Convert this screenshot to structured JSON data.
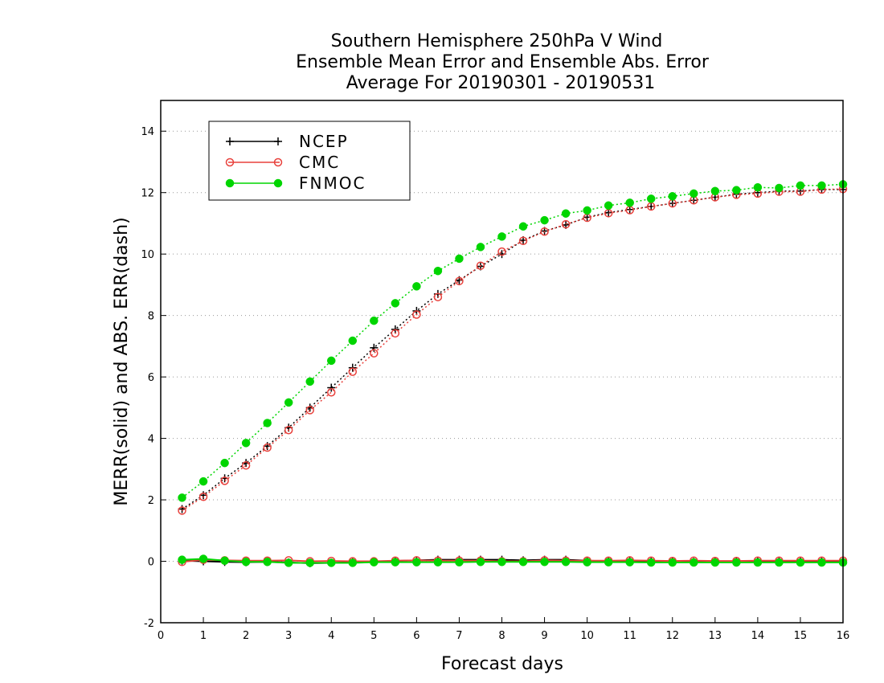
{
  "chart_data": {
    "type": "line",
    "title_lines": [
      "Southern Hemisphere 250hPa V Wind",
      "Ensemble Mean Error and Ensemble Abs. Error",
      "Average For 20190301 - 20190531"
    ],
    "xlabel": "Forecast days",
    "ylabel": "MERR(solid) and ABS. ERR(dash)",
    "xlim": [
      0,
      16
    ],
    "ylim": [
      -2,
      15
    ],
    "xticks": [
      "0",
      "1",
      "2",
      "3",
      "4",
      "5",
      "6",
      "7",
      "8",
      "9",
      "10",
      "11",
      "12",
      "13",
      "14",
      "15",
      "16"
    ],
    "yticks": [
      "-2",
      "0",
      "2",
      "4",
      "6",
      "8",
      "10",
      "12",
      "14"
    ],
    "grid": "horizontal dotted",
    "legend_position": "top-left",
    "x": [
      0.5,
      1,
      1.5,
      2,
      2.5,
      3,
      3.5,
      4,
      4.5,
      5,
      5.5,
      6,
      6.5,
      7,
      7.5,
      8,
      8.5,
      9,
      9.5,
      10,
      10.5,
      11,
      11.5,
      12,
      12.5,
      13,
      13.5,
      14,
      14.5,
      15,
      15.5,
      16
    ],
    "series": [
      {
        "name": "NCEP",
        "color": "#000000",
        "marker": "plus",
        "merr": [
          0.02,
          0.0,
          -0.02,
          -0.03,
          -0.02,
          -0.04,
          -0.06,
          -0.05,
          -0.03,
          -0.02,
          0.01,
          0.03,
          0.05,
          0.05,
          0.05,
          0.05,
          0.03,
          0.05,
          0.05,
          0.02,
          0.0,
          0.01,
          0.0,
          -0.01,
          -0.02,
          -0.02,
          -0.01,
          0.0,
          -0.01,
          -0.01,
          0.0,
          0.01
        ],
        "abs_err": [
          1.7,
          2.15,
          2.7,
          3.2,
          3.75,
          4.35,
          5.0,
          5.65,
          6.3,
          6.95,
          7.55,
          8.15,
          8.7,
          9.15,
          9.6,
          10.0,
          10.45,
          10.75,
          10.95,
          11.2,
          11.35,
          11.45,
          11.55,
          11.65,
          11.75,
          11.85,
          11.95,
          12.0,
          12.05,
          12.05,
          12.1,
          12.1
        ]
      },
      {
        "name": "CMC",
        "color": "#e8413c",
        "marker": "open-circle",
        "merr": [
          -0.02,
          0.05,
          0.03,
          0.02,
          0.02,
          0.03,
          0.0,
          0.01,
          0.0,
          0.0,
          0.02,
          0.03,
          0.02,
          0.02,
          0.02,
          0.0,
          0.0,
          0.03,
          0.02,
          0.02,
          0.02,
          0.03,
          0.02,
          0.01,
          0.02,
          0.01,
          0.01,
          0.02,
          0.02,
          0.02,
          0.02,
          0.02
        ],
        "abs_err": [
          1.65,
          2.1,
          2.62,
          3.12,
          3.7,
          4.27,
          4.92,
          5.5,
          6.17,
          6.77,
          7.42,
          8.03,
          8.6,
          9.12,
          9.62,
          10.08,
          10.43,
          10.73,
          10.97,
          11.18,
          11.33,
          11.43,
          11.55,
          11.65,
          11.75,
          11.85,
          11.93,
          11.97,
          12.03,
          12.03,
          12.1,
          12.12
        ]
      },
      {
        "name": "FNMOC",
        "color": "#00d500",
        "marker": "filled-circle",
        "merr": [
          0.05,
          0.08,
          0.02,
          -0.02,
          -0.02,
          -0.05,
          -0.05,
          -0.05,
          -0.05,
          -0.03,
          -0.03,
          -0.03,
          -0.03,
          -0.03,
          -0.02,
          -0.02,
          -0.02,
          -0.02,
          -0.02,
          -0.03,
          -0.03,
          -0.03,
          -0.04,
          -0.04,
          -0.04,
          -0.04,
          -0.04,
          -0.04,
          -0.04,
          -0.04,
          -0.04,
          -0.04
        ],
        "abs_err": [
          2.07,
          2.6,
          3.2,
          3.85,
          4.5,
          5.17,
          5.85,
          6.53,
          7.18,
          7.83,
          8.4,
          8.95,
          9.45,
          9.85,
          10.23,
          10.57,
          10.9,
          11.1,
          11.32,
          11.42,
          11.58,
          11.67,
          11.8,
          11.88,
          11.97,
          12.05,
          12.08,
          12.17,
          12.15,
          12.23,
          12.23,
          12.27
        ]
      }
    ]
  }
}
